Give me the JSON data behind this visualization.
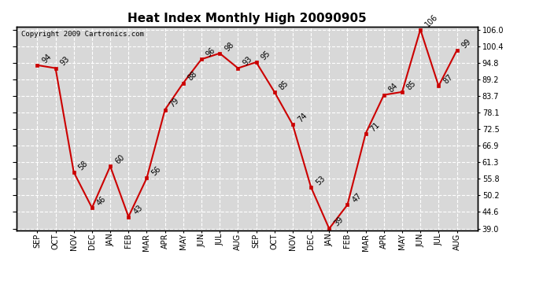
{
  "title": "Heat Index Monthly High 20090905",
  "copyright": "Copyright 2009 Cartronics.com",
  "months": [
    "SEP",
    "OCT",
    "NOV",
    "DEC",
    "JAN",
    "FEB",
    "MAR",
    "APR",
    "MAY",
    "JUN",
    "JUL",
    "AUG",
    "SEP",
    "OCT",
    "NOV",
    "DEC",
    "JAN",
    "FEB",
    "MAR",
    "APR",
    "MAY",
    "JUN",
    "JUL",
    "AUG"
  ],
  "values": [
    94,
    93,
    58,
    46,
    60,
    43,
    56,
    79,
    88,
    96,
    98,
    93,
    95,
    85,
    74,
    53,
    39,
    47,
    71,
    84,
    85,
    106,
    87,
    99
  ],
  "line_color": "#cc0000",
  "marker_color": "#cc0000",
  "bg_color": "#d8d8d8",
  "grid_color": "#ffffff",
  "ylim_min": 39.0,
  "ylim_max": 106.0,
  "yticks": [
    39.0,
    44.6,
    50.2,
    55.8,
    61.3,
    66.9,
    72.5,
    78.1,
    83.7,
    89.2,
    94.8,
    100.4,
    106.0
  ],
  "title_fontsize": 11,
  "label_fontsize": 7,
  "tick_fontsize": 7
}
